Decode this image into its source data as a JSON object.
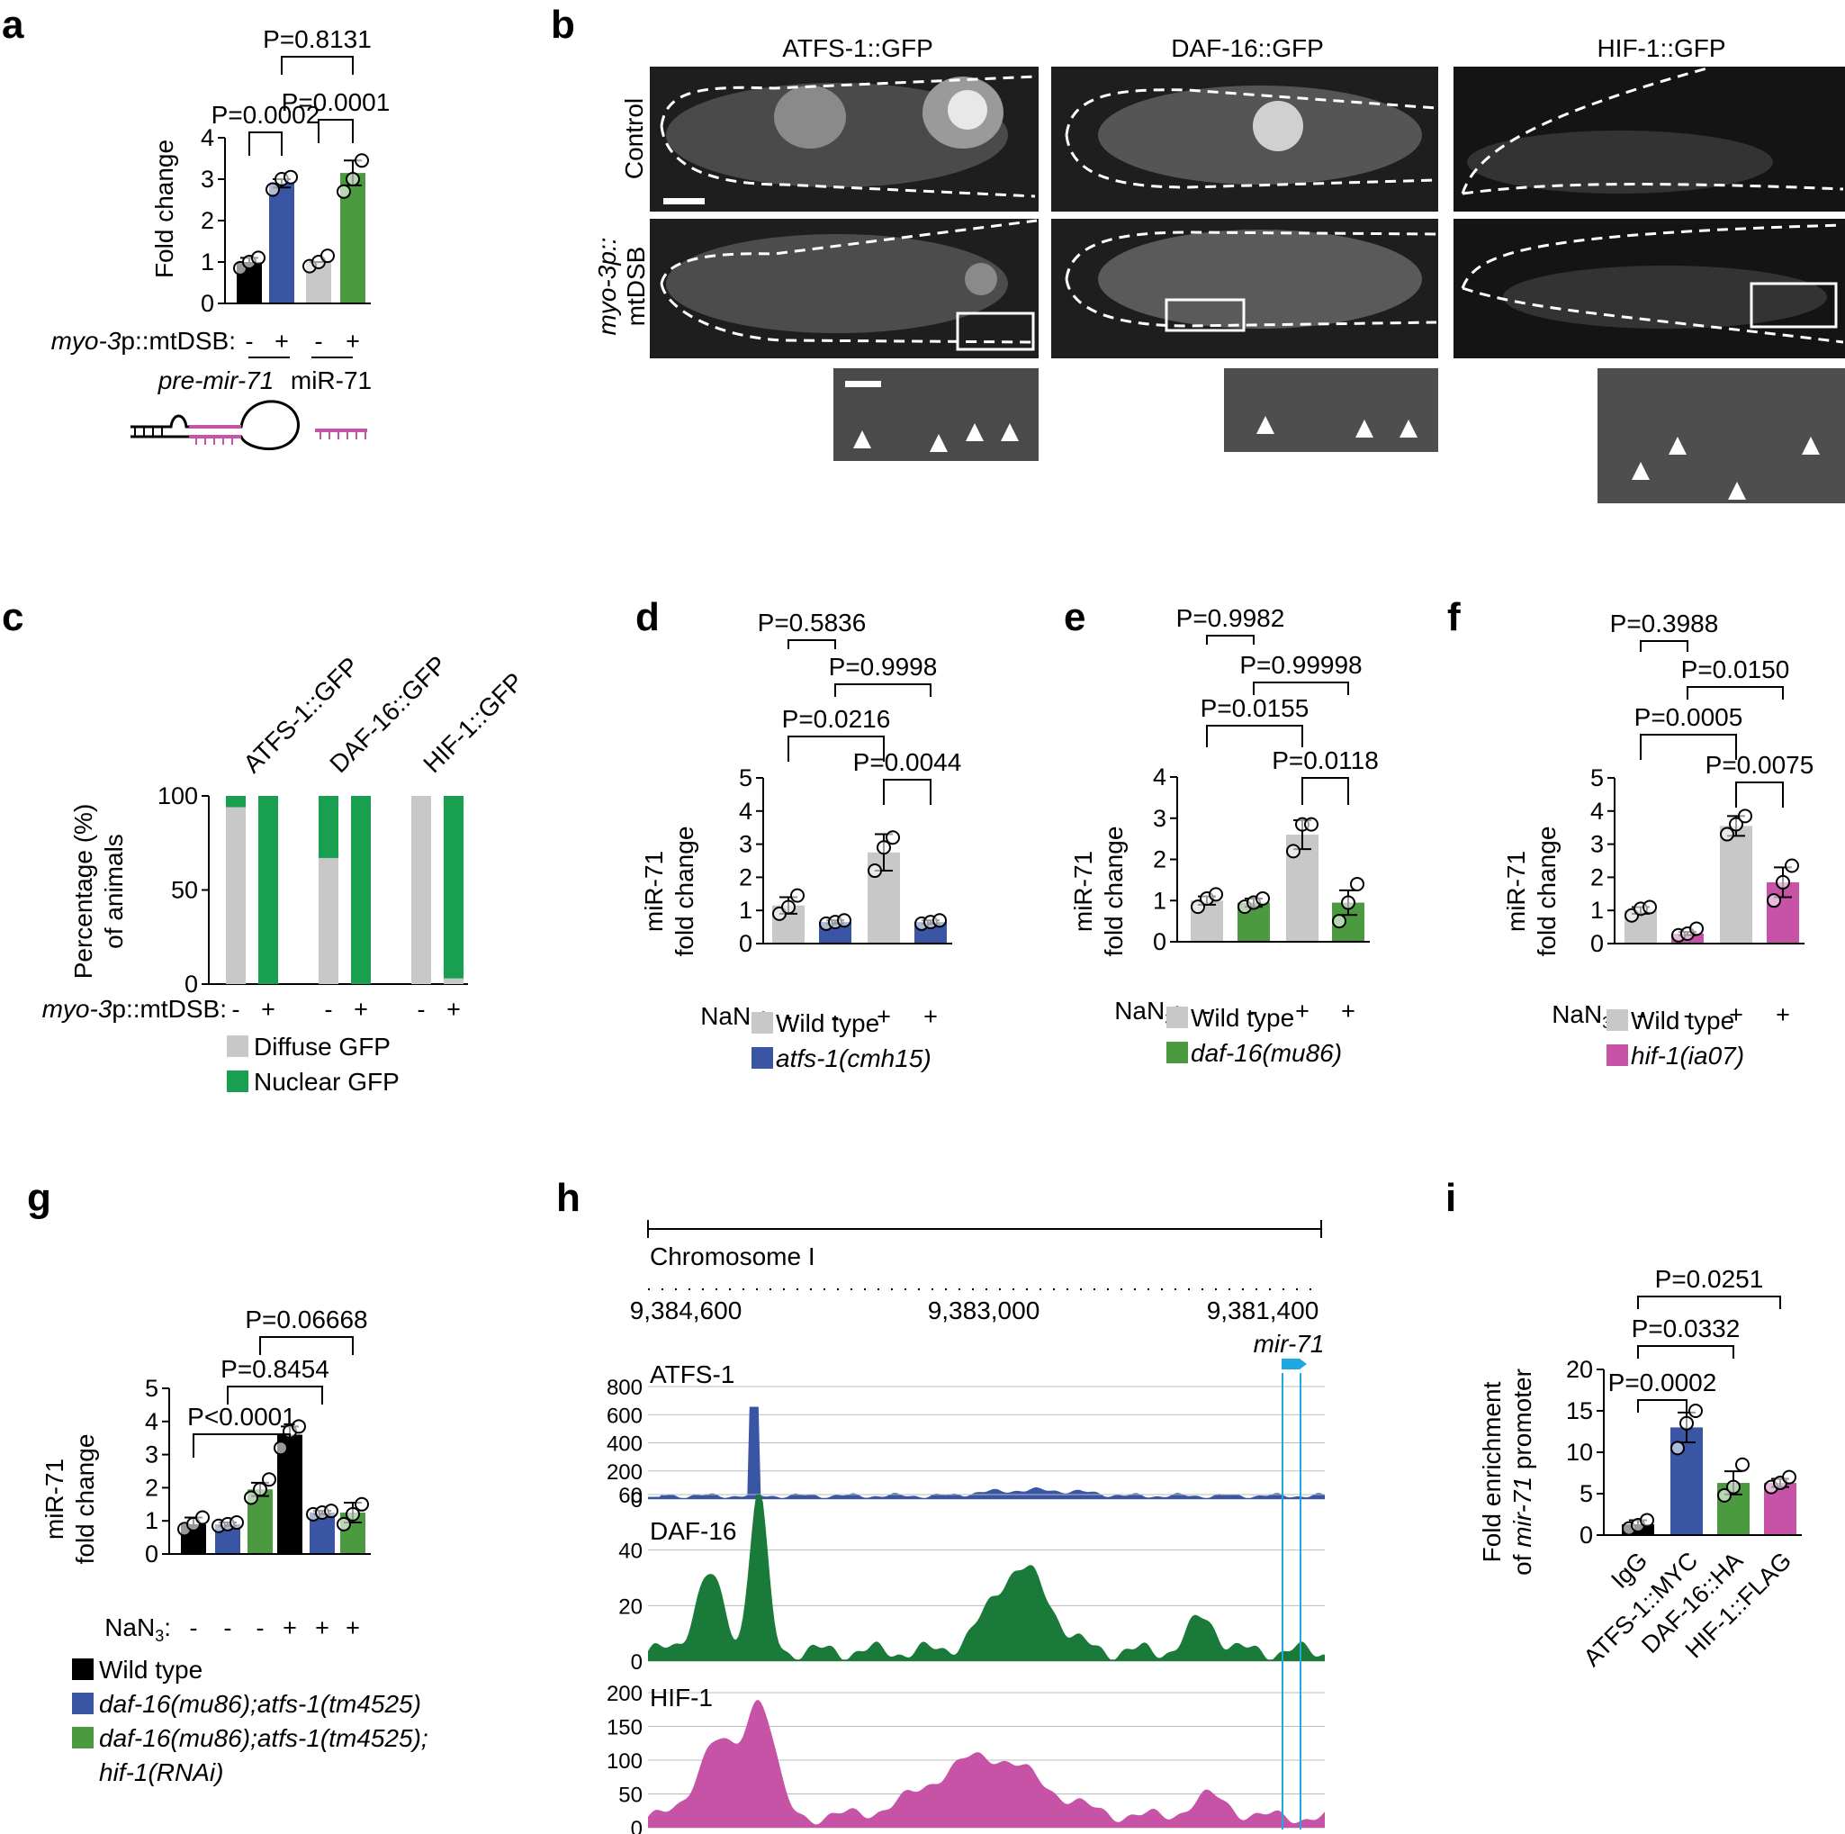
{
  "labels": {
    "a": "a",
    "b": "b",
    "c": "c",
    "d": "d",
    "e": "e",
    "f": "f",
    "g": "g",
    "h": "h",
    "i": "i"
  },
  "common": {
    "nan3_label": "NaN",
    "nan3_sub": "3",
    "nan3_colon": ":",
    "minus": "-",
    "plus": "+",
    "wt": "Wild type",
    "mir71_label": "miR-71",
    "fold_change": "fold change",
    "mtdsb_italic": "myo-3",
    "mtdsb_rest": "p::mtDSB:"
  },
  "colors": {
    "black": "#000000",
    "grey": "#c8c8c8",
    "blue": "#3a55a4",
    "green": "#4c9a3f",
    "magenta": "#c653a6",
    "atfs_track": "#3a55a4",
    "daf_track": "#1a7a3a",
    "hif_track": "#c653a6",
    "mir_marker": "#20a8e0"
  },
  "panel_a": {
    "ylabel": "Fold change",
    "xlabel_prefix": "myo-3",
    "xlabel_suffix": "p::mtDSB:",
    "group1": "pre-mir-71",
    "group2": "miR-71"
  },
  "panel_b": {
    "columns": [
      "ATFS-1::GFP",
      "DAF-16::GFP",
      "HIF-1::GFP"
    ],
    "row_control": "Control",
    "row_mt1": "myo-3p::",
    "row_mt2": "mtDSB"
  },
  "panel_c": {
    "ylabel1": "Percentage (%)",
    "ylabel2": "of animals",
    "reporters": [
      "ATFS-1::GFP",
      "DAF-16::GFP",
      "HIF-1::GFP"
    ],
    "legend": [
      "Diffuse GFP",
      "Nuclear GFP"
    ]
  },
  "panel_d": {
    "mutant": "atfs-1(cmh15)"
  },
  "panel_e": {
    "mutant": "daf-16(mu86)"
  },
  "panel_f": {
    "mutant": "hif-1(ia07)"
  },
  "panel_g": {
    "legend": [
      "Wild type",
      "daf-16(mu86);atfs-1(tm4525)",
      "daf-16(mu86);atfs-1(tm4525);",
      "hif-1(RNAi)"
    ]
  },
  "panel_h": {
    "chrom": "Chromosome I",
    "coords": [
      "9,384,600",
      "9,383,000",
      "9,381,400"
    ],
    "gene": "mir-71",
    "tracks": [
      "ATFS-1",
      "DAF-16",
      "HIF-1"
    ]
  },
  "panel_i": {
    "ylabel1": "Fold enrichment",
    "ylabel2": "of mir-71 promoter",
    "categories": [
      "IgG",
      "ATFS-1::MYC",
      "DAF-16::HA",
      "HIF-1::FLAG"
    ]
  },
  "chart_data": [
    {
      "panel": "a",
      "type": "bar",
      "categories": [
        "pre-mir-71 -",
        "pre-mir-71 +",
        "miR-71 -",
        "miR-71 +"
      ],
      "values": [
        1.0,
        2.9,
        1.0,
        3.15
      ],
      "errors": [
        0.1,
        0.1,
        0.0,
        0.3
      ],
      "points": [
        [
          0.85,
          1.0,
          1.1
        ],
        [
          2.75,
          3.0,
          3.05
        ],
        [
          0.9,
          1.0,
          1.15
        ],
        [
          2.7,
          3.0,
          3.45
        ]
      ],
      "colors": [
        "black",
        "blue",
        "grey",
        "green"
      ],
      "ylim": [
        0,
        4
      ],
      "yticks": [
        0,
        1,
        2,
        3,
        4
      ],
      "comparisons": [
        {
          "a": 0,
          "b": 1,
          "label": "P=0.0002"
        },
        {
          "a": 2,
          "b": 3,
          "label": "P=0.0001"
        },
        {
          "a": 1,
          "b": 3,
          "label": "P=0.8131"
        }
      ],
      "xlabels": [
        "-",
        "+",
        "-",
        "+"
      ]
    },
    {
      "panel": "c",
      "type": "bar",
      "categories": [
        "ATFS-1 -",
        "ATFS-1 +",
        "DAF-16 -",
        "DAF-16 +",
        "HIF-1 -",
        "HIF-1 +"
      ],
      "series": [
        {
          "name": "Diffuse GFP",
          "values": [
            94,
            0,
            67,
            0,
            100,
            3
          ]
        },
        {
          "name": "Nuclear GFP",
          "values": [
            6,
            100,
            33,
            100,
            0,
            97
          ]
        }
      ],
      "ylim": [
        0,
        100
      ],
      "yticks": [
        0,
        50,
        100
      ],
      "xlabels": [
        "-",
        "+",
        "-",
        "+",
        "-",
        "+"
      ]
    },
    {
      "panel": "d",
      "type": "bar",
      "categories": [
        "WT -",
        "atfs-1 -",
        "WT +",
        "atfs-1 +"
      ],
      "values": [
        1.15,
        0.65,
        2.75,
        0.65
      ],
      "errors": [
        0.25,
        0.05,
        0.55,
        0.05
      ],
      "points": [
        [
          0.9,
          1.1,
          1.45
        ],
        [
          0.6,
          0.65,
          0.7
        ],
        [
          2.2,
          2.9,
          3.2
        ],
        [
          0.6,
          0.65,
          0.7
        ]
      ],
      "colors": [
        "grey",
        "blue",
        "grey",
        "blue"
      ],
      "ylim": [
        0,
        5
      ],
      "yticks": [
        0,
        1,
        2,
        3,
        4,
        5
      ],
      "comparisons": [
        {
          "a": 0,
          "b": 1,
          "label": "P=0.5836"
        },
        {
          "a": 1,
          "b": 3,
          "label": "P=0.9998"
        },
        {
          "a": 0,
          "b": 2,
          "label": "P=0.0216"
        },
        {
          "a": 2,
          "b": 3,
          "label": "P=0.0044"
        }
      ],
      "xlabels": [
        "-",
        "-",
        "+",
        "+"
      ]
    },
    {
      "panel": "e",
      "type": "bar",
      "categories": [
        "WT -",
        "daf-16 -",
        "WT +",
        "daf-16 +"
      ],
      "values": [
        1.0,
        0.95,
        2.6,
        0.95
      ],
      "errors": [
        0.1,
        0.1,
        0.35,
        0.3
      ],
      "points": [
        [
          0.85,
          1.05,
          1.15
        ],
        [
          0.85,
          0.95,
          1.05
        ],
        [
          2.2,
          2.85,
          2.85
        ],
        [
          0.5,
          0.95,
          1.4
        ]
      ],
      "colors": [
        "grey",
        "green",
        "grey",
        "green"
      ],
      "ylim": [
        0,
        4
      ],
      "yticks": [
        0,
        1,
        2,
        3,
        4
      ],
      "comparisons": [
        {
          "a": 0,
          "b": 1,
          "label": "P=0.9982"
        },
        {
          "a": 1,
          "b": 3,
          "label": "P=0.99998"
        },
        {
          "a": 0,
          "b": 2,
          "label": "P=0.0155"
        },
        {
          "a": 2,
          "b": 3,
          "label": "P=0.0118"
        }
      ],
      "xlabels": [
        "-",
        "-",
        "+",
        "+"
      ]
    },
    {
      "panel": "f",
      "type": "bar",
      "categories": [
        "WT -",
        "hif-1 -",
        "WT +",
        "hif-1 +"
      ],
      "values": [
        1.0,
        0.3,
        3.55,
        1.85
      ],
      "errors": [
        0.1,
        0.05,
        0.3,
        0.45
      ],
      "points": [
        [
          0.85,
          1.05,
          1.1
        ],
        [
          0.25,
          0.3,
          0.45
        ],
        [
          3.3,
          3.6,
          3.85
        ],
        [
          1.3,
          1.85,
          2.35
        ]
      ],
      "colors": [
        "grey",
        "magenta",
        "grey",
        "magenta"
      ],
      "ylim": [
        0,
        5
      ],
      "yticks": [
        0,
        1,
        2,
        3,
        4,
        5
      ],
      "comparisons": [
        {
          "a": 0,
          "b": 1,
          "label": "P=0.3988"
        },
        {
          "a": 1,
          "b": 3,
          "label": "P=0.0150"
        },
        {
          "a": 0,
          "b": 2,
          "label": "P=0.0005"
        },
        {
          "a": 2,
          "b": 3,
          "label": "P=0.0075"
        }
      ],
      "xlabels": [
        "-",
        "-",
        "+",
        "+"
      ]
    },
    {
      "panel": "g",
      "type": "bar",
      "categories": [
        "WT -",
        "dm -",
        "dm+hif -",
        "WT +",
        "dm +",
        "dm+hif +"
      ],
      "values": [
        0.9,
        0.9,
        1.95,
        3.6,
        1.25,
        1.25
      ],
      "errors": [
        0.2,
        0.05,
        0.2,
        0.25,
        0.05,
        0.3
      ],
      "points": [
        [
          0.75,
          0.9,
          1.1
        ],
        [
          0.85,
          0.9,
          0.95
        ],
        [
          1.7,
          1.95,
          2.25
        ],
        [
          3.2,
          3.7,
          3.85
        ],
        [
          1.2,
          1.25,
          1.3
        ],
        [
          0.9,
          1.2,
          1.5
        ]
      ],
      "colors": [
        "black",
        "blue",
        "green",
        "black",
        "blue",
        "green"
      ],
      "ylim": [
        0,
        5
      ],
      "yticks": [
        0,
        1,
        2,
        3,
        4,
        5
      ],
      "comparisons": [
        {
          "a": 0,
          "b": 3,
          "label": "P<0.0001"
        },
        {
          "a": 1,
          "b": 4,
          "label": "P=0.8454"
        },
        {
          "a": 2,
          "b": 5,
          "label": "P=0.06668"
        }
      ],
      "xlabels": [
        "-",
        "-",
        "-",
        "+",
        "+",
        "+"
      ]
    },
    {
      "panel": "h",
      "type": "area",
      "tracks": [
        {
          "name": "ATFS-1",
          "ylim": [
            0,
            800
          ],
          "yticks": [
            0,
            200,
            400,
            600,
            800
          ],
          "peaks": [
            [
              0.04,
              0
            ],
            [
              0.15,
              0
            ],
            [
              0.16,
              640
            ],
            [
              0.17,
              0
            ],
            [
              0.5,
              50
            ],
            [
              0.6,
              40
            ]
          ]
        },
        {
          "name": "DAF-16",
          "ylim": [
            0,
            60
          ],
          "yticks": [
            0,
            20,
            40,
            60
          ],
          "peaks": [
            [
              0.1,
              22
            ],
            [
              0.16,
              64
            ],
            [
              0.55,
              36
            ],
            [
              0.8,
              14
            ]
          ]
        },
        {
          "name": "HIF-1",
          "ylim": [
            0,
            200
          ],
          "yticks": [
            0,
            50,
            100,
            150,
            200
          ],
          "peaks": [
            [
              0.1,
              130
            ],
            [
              0.16,
              180
            ],
            [
              0.5,
              95
            ],
            [
              0.8,
              40
            ]
          ]
        }
      ]
    },
    {
      "panel": "i",
      "type": "bar",
      "categories": [
        "IgG",
        "ATFS-1::MYC",
        "DAF-16::HA",
        "HIF-1::FLAG"
      ],
      "values": [
        1.3,
        13.0,
        6.3,
        6.3
      ],
      "errors": [
        0.5,
        1.8,
        1.4,
        0.5
      ],
      "points": [
        [
          0.8,
          1.2,
          1.8
        ],
        [
          10.5,
          13.5,
          15.0
        ],
        [
          4.8,
          5.8,
          8.5
        ],
        [
          5.8,
          6.3,
          7.0
        ]
      ],
      "colors": [
        "black",
        "blue",
        "green",
        "magenta"
      ],
      "ylim": [
        0,
        20
      ],
      "yticks": [
        0,
        5,
        10,
        15,
        20
      ],
      "comparisons": [
        {
          "a": 0,
          "b": 1,
          "label": "P=0.0002"
        },
        {
          "a": 0,
          "b": 2,
          "label": "P=0.0332"
        },
        {
          "a": 0,
          "b": 3,
          "label": "P=0.0251"
        }
      ]
    }
  ]
}
